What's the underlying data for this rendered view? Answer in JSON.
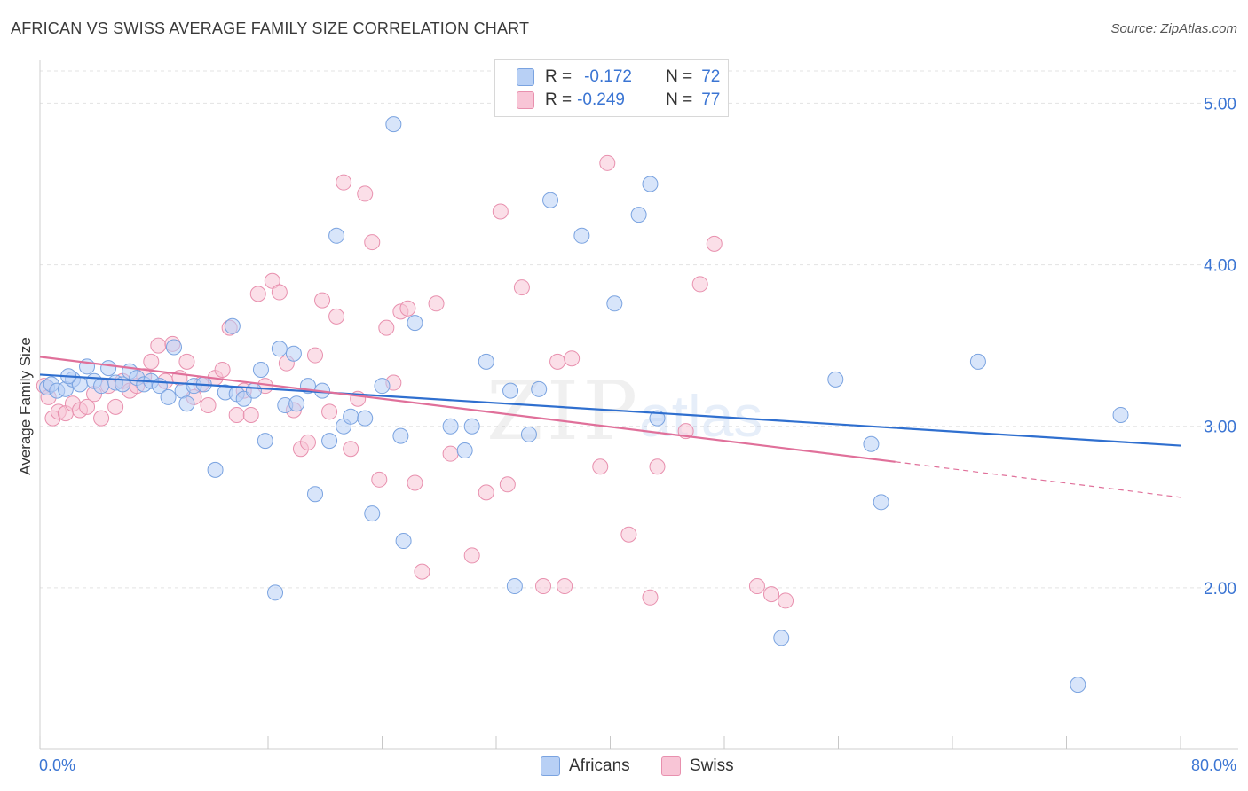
{
  "title": "AFRICAN VS SWISS AVERAGE FAMILY SIZE CORRELATION CHART",
  "source": "Source: ZipAtlas.com",
  "watermark": {
    "zip": "ZIP",
    "atlas": "atlas"
  },
  "legend": {
    "rows": [
      {
        "r_label": "R =",
        "r_value": "-0.172",
        "n_label": "N =",
        "n_value": "72"
      },
      {
        "r_label": "R =",
        "r_value": "-0.249",
        "n_label": "N =",
        "n_value": "77"
      }
    ]
  },
  "colors": {
    "africans_fill": "#b8d0f5",
    "africans_stroke": "#7aa3e0",
    "africans_line": "#2f6fcf",
    "swiss_fill": "#f8c5d6",
    "swiss_stroke": "#e890ae",
    "swiss_line": "#e0709a",
    "axis_text": "#3b75d3",
    "grid": "#e3e3e3"
  },
  "chart_data": {
    "type": "scatter",
    "title": "AFRICAN VS SWISS AVERAGE FAMILY SIZE CORRELATION CHART",
    "xlabel": "",
    "ylabel": "Average Family Size",
    "xlim": [
      0,
      80
    ],
    "ylim": [
      1.0,
      5.2
    ],
    "x_tick_labels": [
      "0.0%",
      "80.0%"
    ],
    "y_ticks": [
      2.0,
      3.0,
      4.0,
      5.0
    ],
    "y_tick_labels": [
      "2.00",
      "3.00",
      "4.00",
      "5.00"
    ],
    "grid": true,
    "legend_position": "bottom",
    "series": [
      {
        "name": "Africans",
        "trend": {
          "x": [
            0,
            80
          ],
          "y": [
            3.32,
            2.88
          ]
        },
        "points": [
          [
            0.5,
            3.24
          ],
          [
            0.8,
            3.26
          ],
          [
            1.2,
            3.22
          ],
          [
            1.8,
            3.23
          ],
          [
            2.3,
            3.29
          ],
          [
            2.8,
            3.26
          ],
          [
            3.3,
            3.37
          ],
          [
            3.8,
            3.28
          ],
          [
            4.3,
            3.25
          ],
          [
            4.8,
            3.36
          ],
          [
            5.3,
            3.27
          ],
          [
            5.8,
            3.26
          ],
          [
            6.3,
            3.34
          ],
          [
            6.8,
            3.3
          ],
          [
            7.3,
            3.26
          ],
          [
            7.8,
            3.28
          ],
          [
            8.4,
            3.25
          ],
          [
            9.4,
            3.49
          ],
          [
            10.0,
            3.22
          ],
          [
            10.3,
            3.14
          ],
          [
            10.8,
            3.25
          ],
          [
            11.5,
            3.26
          ],
          [
            12.3,
            2.73
          ],
          [
            13.0,
            3.21
          ],
          [
            13.5,
            3.62
          ],
          [
            13.8,
            3.2
          ],
          [
            14.3,
            3.17
          ],
          [
            15.0,
            3.22
          ],
          [
            15.5,
            3.35
          ],
          [
            15.8,
            2.91
          ],
          [
            16.5,
            1.97
          ],
          [
            16.8,
            3.48
          ],
          [
            17.2,
            3.13
          ],
          [
            17.8,
            3.45
          ],
          [
            18.0,
            3.14
          ],
          [
            18.8,
            3.25
          ],
          [
            19.3,
            2.58
          ],
          [
            19.8,
            3.22
          ],
          [
            20.3,
            2.91
          ],
          [
            20.8,
            4.18
          ],
          [
            21.3,
            3.0
          ],
          [
            21.8,
            3.06
          ],
          [
            22.8,
            3.05
          ],
          [
            23.3,
            2.46
          ],
          [
            24.0,
            3.25
          ],
          [
            24.8,
            4.87
          ],
          [
            25.3,
            2.94
          ],
          [
            25.5,
            2.29
          ],
          [
            26.3,
            3.64
          ],
          [
            28.8,
            3.0
          ],
          [
            29.8,
            2.85
          ],
          [
            30.3,
            3.0
          ],
          [
            31.3,
            3.4
          ],
          [
            33.0,
            3.22
          ],
          [
            33.3,
            2.01
          ],
          [
            34.3,
            2.95
          ],
          [
            35.0,
            3.23
          ],
          [
            35.8,
            4.4
          ],
          [
            38.0,
            4.18
          ],
          [
            40.3,
            3.76
          ],
          [
            42.0,
            4.31
          ],
          [
            42.8,
            4.5
          ],
          [
            43.3,
            3.05
          ],
          [
            52.0,
            1.69
          ],
          [
            55.8,
            3.29
          ],
          [
            58.3,
            2.89
          ],
          [
            59.0,
            2.53
          ],
          [
            65.8,
            3.4
          ],
          [
            72.8,
            1.4
          ],
          [
            75.8,
            3.07
          ],
          [
            2.0,
            3.31
          ],
          [
            9.0,
            3.18
          ]
        ]
      },
      {
        "name": "Swiss",
        "trend": {
          "x": [
            0,
            60
          ],
          "y": [
            3.43,
            2.78
          ]
        },
        "trend_dashed": {
          "x": [
            60,
            80
          ],
          "y": [
            2.78,
            2.56
          ]
        },
        "points": [
          [
            0.3,
            3.25
          ],
          [
            0.6,
            3.18
          ],
          [
            0.9,
            3.05
          ],
          [
            1.3,
            3.09
          ],
          [
            1.8,
            3.08
          ],
          [
            2.3,
            3.14
          ],
          [
            2.8,
            3.1
          ],
          [
            3.3,
            3.12
          ],
          [
            3.8,
            3.2
          ],
          [
            4.3,
            3.05
          ],
          [
            4.8,
            3.25
          ],
          [
            5.3,
            3.12
          ],
          [
            5.8,
            3.28
          ],
          [
            6.3,
            3.22
          ],
          [
            6.8,
            3.25
          ],
          [
            7.3,
            3.31
          ],
          [
            7.8,
            3.4
          ],
          [
            8.3,
            3.5
          ],
          [
            8.8,
            3.28
          ],
          [
            9.3,
            3.51
          ],
          [
            9.8,
            3.3
          ],
          [
            10.3,
            3.4
          ],
          [
            10.8,
            3.18
          ],
          [
            11.3,
            3.26
          ],
          [
            11.8,
            3.13
          ],
          [
            12.3,
            3.3
          ],
          [
            12.8,
            3.35
          ],
          [
            13.3,
            3.61
          ],
          [
            13.8,
            3.07
          ],
          [
            14.3,
            3.22
          ],
          [
            14.8,
            3.07
          ],
          [
            15.3,
            3.82
          ],
          [
            15.8,
            3.25
          ],
          [
            16.3,
            3.9
          ],
          [
            16.8,
            3.83
          ],
          [
            17.3,
            3.39
          ],
          [
            17.8,
            3.1
          ],
          [
            18.3,
            2.86
          ],
          [
            18.8,
            2.9
          ],
          [
            19.3,
            3.44
          ],
          [
            19.8,
            3.78
          ],
          [
            20.3,
            3.09
          ],
          [
            20.8,
            3.68
          ],
          [
            21.3,
            4.51
          ],
          [
            21.8,
            2.86
          ],
          [
            22.3,
            3.17
          ],
          [
            22.8,
            4.44
          ],
          [
            23.3,
            4.14
          ],
          [
            23.8,
            2.67
          ],
          [
            24.3,
            3.61
          ],
          [
            24.8,
            3.27
          ],
          [
            25.3,
            3.71
          ],
          [
            25.8,
            3.73
          ],
          [
            26.3,
            2.65
          ],
          [
            26.8,
            2.1
          ],
          [
            27.8,
            3.76
          ],
          [
            28.8,
            2.83
          ],
          [
            30.3,
            2.2
          ],
          [
            31.3,
            2.59
          ],
          [
            32.3,
            4.33
          ],
          [
            32.8,
            2.64
          ],
          [
            33.8,
            3.86
          ],
          [
            35.3,
            2.01
          ],
          [
            36.3,
            3.4
          ],
          [
            36.8,
            2.01
          ],
          [
            37.3,
            3.42
          ],
          [
            39.3,
            2.75
          ],
          [
            39.8,
            4.63
          ],
          [
            41.3,
            2.33
          ],
          [
            42.8,
            1.94
          ],
          [
            43.3,
            2.75
          ],
          [
            45.3,
            2.97
          ],
          [
            46.3,
            3.88
          ],
          [
            47.3,
            4.13
          ],
          [
            50.3,
            2.01
          ],
          [
            51.3,
            1.96
          ],
          [
            52.3,
            1.92
          ]
        ]
      }
    ]
  }
}
